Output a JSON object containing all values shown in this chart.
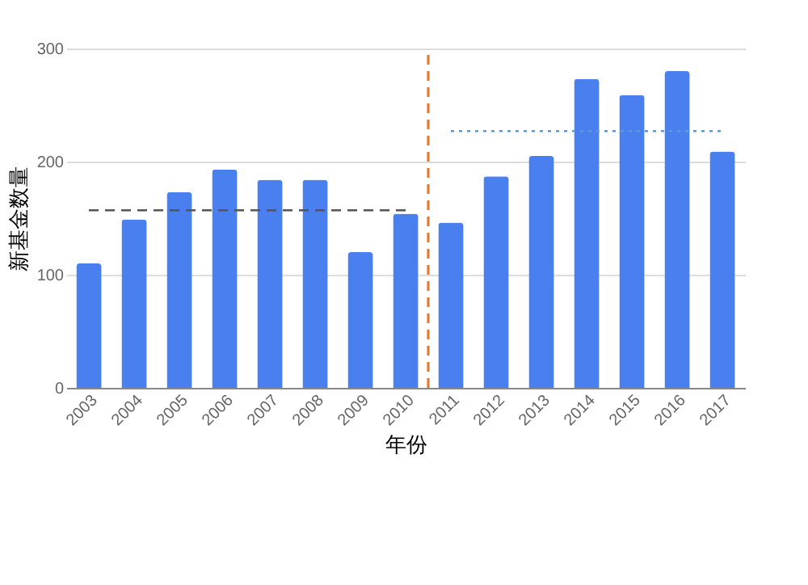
{
  "chart_data": {
    "type": "bar",
    "xlabel": "年份",
    "ylabel": "新基金数量",
    "categories": [
      "2003",
      "2004",
      "2005",
      "2006",
      "2007",
      "2008",
      "2009",
      "2010",
      "2011",
      "2012",
      "2013",
      "2014",
      "2015",
      "2016",
      "2017"
    ],
    "series": [
      {
        "color": "#4a7ff0",
        "values": [
          110,
          149,
          173,
          193,
          184,
          184,
          120,
          154,
          146,
          187,
          205,
          273,
          259,
          280,
          209
        ]
      },
      {
        "type": "line",
        "color": "#555555",
        "line_style": "dashed",
        "values": [
          157,
          157,
          157,
          157,
          157,
          157,
          157,
          157,
          null,
          null,
          null,
          null,
          null,
          null,
          null
        ]
      },
      {
        "type": "line",
        "color": "#5b9bd5",
        "line_style": "dotted",
        "values": [
          null,
          null,
          null,
          null,
          null,
          null,
          null,
          null,
          227,
          227,
          227,
          227,
          227,
          227,
          227
        ]
      }
    ],
    "ylim": [
      0,
      300
    ],
    "yticks": [
      0,
      100,
      200,
      300
    ],
    "grid": "y",
    "ref_lines": [
      {
        "axis": "x",
        "value": "2011",
        "color": "#e8742a",
        "line_style": "dashed"
      }
    ]
  }
}
